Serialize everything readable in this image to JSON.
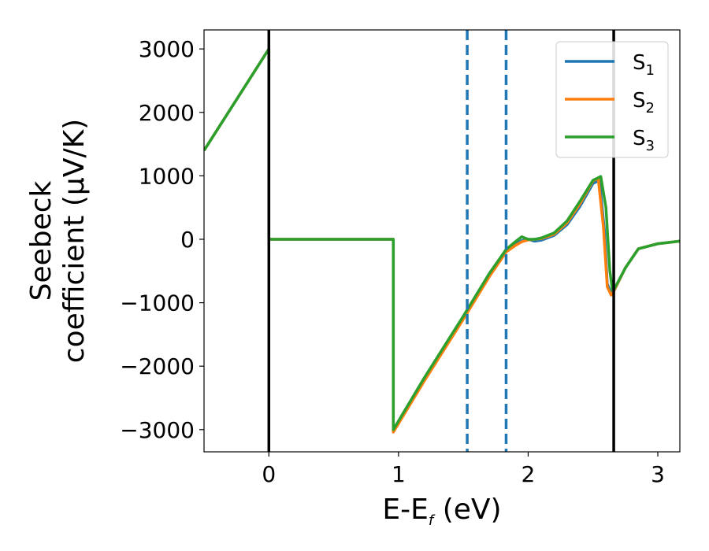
{
  "chart_data": {
    "type": "line",
    "xlabel_main": "E-E",
    "xlabel_sub": "f",
    "xlabel_unit": " (eV)",
    "ylabel_line1": "Seebeck",
    "ylabel_line2": "coefficient  (μV/K)",
    "xlim": [
      -0.5,
      3.17
    ],
    "ylim": [
      -3350,
      3300
    ],
    "xticks": [
      0,
      1,
      2,
      3
    ],
    "xtick_labels": [
      "0",
      "1",
      "2",
      "3"
    ],
    "yticks": [
      3000,
      2000,
      1000,
      0,
      -1000,
      -2000,
      -3000
    ],
    "ytick_labels": [
      "3000",
      "2000",
      "1000",
      "0",
      "−1000",
      "−2000",
      "−3000"
    ],
    "grid": false,
    "legend_position": "top-right",
    "vertical_lines": [
      {
        "x": 0.0,
        "style": "solid",
        "color": "#000000"
      },
      {
        "x": 2.66,
        "style": "solid",
        "color": "#000000"
      },
      {
        "x": 1.53,
        "style": "dashed",
        "color": "#1f77b4"
      },
      {
        "x": 1.83,
        "style": "dashed",
        "color": "#1f77b4"
      }
    ],
    "series": [
      {
        "name": "S",
        "name_sub": "1",
        "color": "#1f77b4",
        "points": [
          [
            -0.5,
            1400
          ],
          [
            -0.25,
            2200
          ],
          [
            0.0,
            3000
          ],
          [
            0.0,
            0
          ],
          [
            0.5,
            0
          ],
          [
            0.96,
            0
          ],
          [
            0.96,
            -3020
          ],
          [
            1.2,
            -2200
          ],
          [
            1.5,
            -1230
          ],
          [
            1.7,
            -560
          ],
          [
            1.83,
            -180
          ],
          [
            1.9,
            -80
          ],
          [
            1.95,
            -20
          ],
          [
            2.0,
            0
          ],
          [
            2.05,
            -30
          ],
          [
            2.1,
            -15
          ],
          [
            2.2,
            60
          ],
          [
            2.3,
            230
          ],
          [
            2.4,
            520
          ],
          [
            2.5,
            880
          ],
          [
            2.55,
            930
          ],
          [
            2.59,
            100
          ],
          [
            2.61,
            -700
          ],
          [
            2.64,
            -860
          ],
          [
            2.66,
            -820
          ],
          [
            2.75,
            -450
          ],
          [
            2.85,
            -150
          ],
          [
            3.0,
            -70
          ],
          [
            3.17,
            -30
          ]
        ]
      },
      {
        "name": "S",
        "name_sub": "2",
        "color": "#ff7f0e",
        "points": [
          [
            -0.5,
            1400
          ],
          [
            -0.25,
            2200
          ],
          [
            0.0,
            3000
          ],
          [
            0.0,
            0
          ],
          [
            0.5,
            0
          ],
          [
            0.96,
            0
          ],
          [
            0.96,
            -3040
          ],
          [
            1.2,
            -2230
          ],
          [
            1.5,
            -1260
          ],
          [
            1.7,
            -590
          ],
          [
            1.83,
            -200
          ],
          [
            1.9,
            -100
          ],
          [
            1.95,
            -40
          ],
          [
            2.0,
            -10
          ],
          [
            2.05,
            0
          ],
          [
            2.1,
            10
          ],
          [
            2.2,
            80
          ],
          [
            2.3,
            260
          ],
          [
            2.4,
            560
          ],
          [
            2.5,
            920
          ],
          [
            2.54,
            960
          ],
          [
            2.58,
            200
          ],
          [
            2.61,
            -750
          ],
          [
            2.64,
            -880
          ],
          [
            2.66,
            -820
          ],
          [
            2.75,
            -450
          ],
          [
            2.85,
            -150
          ],
          [
            3.0,
            -70
          ],
          [
            3.17,
            -30
          ]
        ]
      },
      {
        "name": "S",
        "name_sub": "3",
        "color": "#2ca02c",
        "points": [
          [
            -0.5,
            1400
          ],
          [
            -0.25,
            2200
          ],
          [
            0.0,
            3000
          ],
          [
            0.0,
            0
          ],
          [
            0.5,
            0
          ],
          [
            0.96,
            0
          ],
          [
            0.96,
            -3000
          ],
          [
            1.2,
            -2180
          ],
          [
            1.5,
            -1210
          ],
          [
            1.7,
            -540
          ],
          [
            1.83,
            -160
          ],
          [
            1.9,
            -40
          ],
          [
            1.95,
            40
          ],
          [
            2.0,
            0
          ],
          [
            2.05,
            0
          ],
          [
            2.1,
            20
          ],
          [
            2.2,
            100
          ],
          [
            2.3,
            290
          ],
          [
            2.4,
            600
          ],
          [
            2.5,
            930
          ],
          [
            2.56,
            990
          ],
          [
            2.6,
            500
          ],
          [
            2.63,
            -500
          ],
          [
            2.65,
            -800
          ],
          [
            2.66,
            -800
          ],
          [
            2.75,
            -450
          ],
          [
            2.85,
            -150
          ],
          [
            3.0,
            -70
          ],
          [
            3.17,
            -30
          ]
        ]
      }
    ]
  }
}
